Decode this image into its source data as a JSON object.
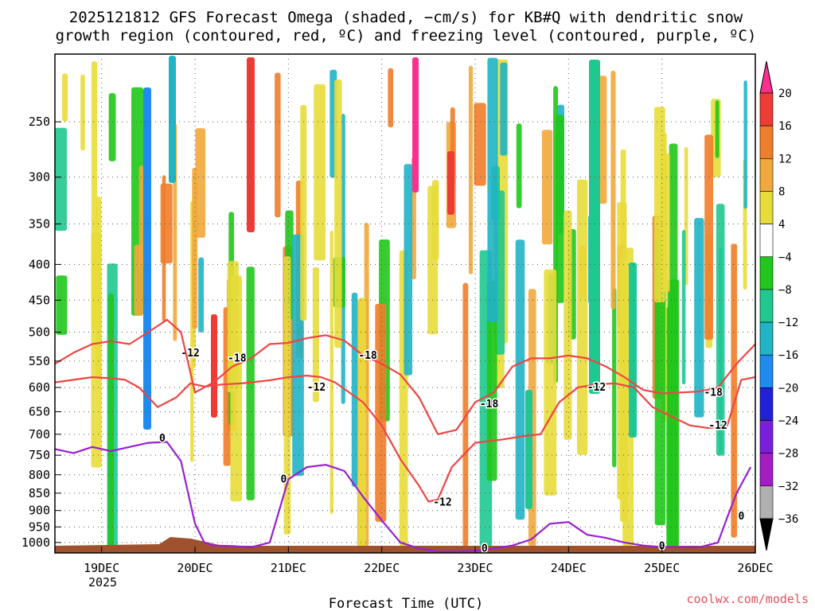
{
  "chart_data": {
    "type": "heatmap",
    "title_line1": "2025121812 GFS Forecast Omega (shaded, −cm/s) for KB#Q with dendritic snow",
    "title_line2": "growth region (contoured, red, ºC) and freezing level (contoured, purple, ºC)",
    "xlabel": "Forecast Time (UTC)",
    "credit": "coolwx.com/models",
    "x_ticks": [
      "19DEC",
      "20DEC",
      "21DEC",
      "22DEC",
      "23DEC",
      "24DEC",
      "25DEC",
      "26DEC"
    ],
    "x_tick_sub": "2025",
    "x_range_days": [
      18.5,
      26.0
    ],
    "y_ticks": [
      250,
      300,
      350,
      400,
      450,
      500,
      550,
      600,
      650,
      700,
      750,
      800,
      850,
      900,
      950,
      1000
    ],
    "y_range_hpa": [
      200,
      1035
    ],
    "y_scale": "log-pressure",
    "grid": true,
    "colorbar": {
      "levels": [
        "20",
        "16",
        "12",
        "8",
        "4",
        "−4",
        "−8",
        "−12",
        "−16",
        "−20",
        "−24",
        "−28",
        "−32",
        "−36"
      ],
      "colors": [
        "#ff2f8f",
        "#ee3b34",
        "#f07d2a",
        "#f2a93b",
        "#e8dc3a",
        "#ffffff",
        "#1fc81a",
        "#1fc891",
        "#1fb4c6",
        "#1e8bf0",
        "#2020d8",
        "#7a1fe0",
        "#a51bc6",
        "#b0b0b0",
        "#000000"
      ]
    },
    "series": [
      {
        "name": "-12",
        "color": "#ee4545",
        "label_points": [
          [
            "19.95",
            536
          ],
          [
            "21.3",
            600
          ],
          [
            "22.65",
            876
          ],
          [
            "24.3",
            600
          ],
          [
            "25.6",
            680
          ]
        ],
        "x": [
          18.5,
          18.7,
          18.9,
          19.1,
          19.25,
          19.4,
          19.6,
          19.8,
          19.95,
          20.1,
          20.3,
          20.5,
          20.8,
          21.0,
          21.2,
          21.35,
          21.5,
          21.8,
          22.0,
          22.2,
          22.4,
          22.5,
          22.6,
          22.75,
          23.0,
          23.3,
          23.5,
          23.7,
          23.9,
          24.1,
          24.3,
          24.5,
          24.7,
          24.9,
          25.1,
          25.3,
          25.5,
          25.7,
          25.85,
          26.0
        ],
        "y": [
          590,
          585,
          580,
          582,
          585,
          600,
          640,
          620,
          592,
          598,
          594,
          592,
          586,
          580,
          577,
          580,
          590,
          630,
          680,
          760,
          830,
          874,
          868,
          780,
          720,
          712,
          705,
          700,
          630,
          600,
          594,
          592,
          600,
          640,
          660,
          680,
          686,
          680,
          585,
          580
        ]
      },
      {
        "name": "-18",
        "color": "#ee4545",
        "label_points": [
          [
            "20.45",
            545
          ],
          [
            "21.85",
            540
          ],
          [
            "23.15",
            634
          ],
          [
            "25.55",
            610
          ]
        ],
        "x": [
          18.5,
          18.7,
          18.9,
          19.1,
          19.3,
          19.5,
          19.7,
          19.85,
          20.0,
          20.2,
          20.4,
          20.6,
          20.8,
          21.0,
          21.2,
          21.4,
          21.6,
          21.8,
          22.0,
          22.2,
          22.4,
          22.6,
          22.8,
          23.0,
          23.2,
          23.4,
          23.6,
          23.8,
          24.0,
          24.2,
          24.4,
          24.6,
          24.8,
          25.0,
          25.2,
          25.4,
          25.6,
          25.8,
          26.0
        ],
        "y": [
          555,
          535,
          520,
          515,
          520,
          500,
          480,
          500,
          610,
          590,
          560,
          545,
          520,
          518,
          510,
          505,
          514,
          540,
          555,
          575,
          620,
          700,
          690,
          630,
          610,
          560,
          545,
          545,
          540,
          545,
          560,
          580,
          605,
          612,
          610,
          608,
          600,
          555,
          520
        ]
      },
      {
        "name": "0",
        "color": "#9a1fd0",
        "label_points": [
          [
            "19.65",
            710
          ],
          [
            "20.95",
            812
          ],
          [
            "23.1",
            1020
          ],
          [
            "25.0",
            1012
          ],
          [
            "25.85",
            918
          ]
        ],
        "x": [
          18.5,
          18.7,
          18.9,
          19.1,
          19.3,
          19.5,
          19.7,
          19.85,
          20.0,
          20.1,
          20.2,
          20.4,
          20.6,
          20.8,
          21.0,
          21.2,
          21.4,
          21.6,
          21.8,
          22.0,
          22.2,
          22.4,
          22.6,
          22.8,
          23.0,
          23.2,
          23.4,
          23.6,
          23.8,
          24.0,
          24.2,
          24.4,
          24.6,
          24.8,
          25.0,
          25.2,
          25.4,
          25.6,
          25.7,
          25.8,
          25.95
        ],
        "y": [
          735,
          745,
          730,
          740,
          730,
          720,
          718,
          765,
          940,
          1000,
          1010,
          1012,
          1016,
          1000,
          812,
          780,
          774,
          790,
          860,
          930,
          1000,
          1020,
          1030,
          1030,
          1028,
          1020,
          1010,
          990,
          940,
          935,
          975,
          985,
          1000,
          1010,
          1015,
          1015,
          1016,
          1000,
          920,
          850,
          780
        ]
      }
    ]
  }
}
